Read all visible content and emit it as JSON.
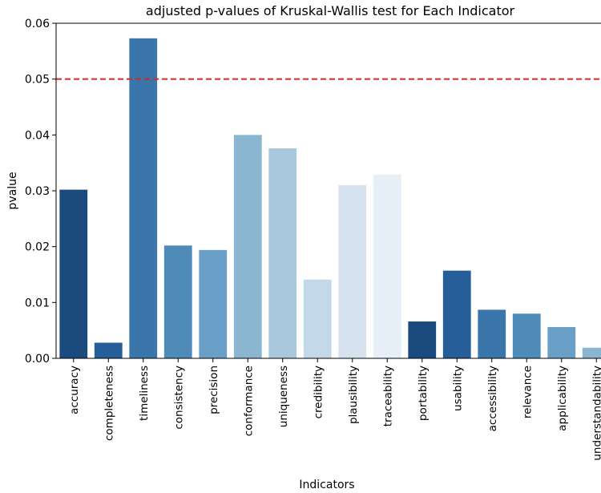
{
  "chart_data": {
    "type": "bar",
    "title": "adjusted p-values of Kruskal-Wallis test for Each Indicator",
    "xlabel": "Indicators",
    "ylabel": "pvalue",
    "ylim": [
      0,
      0.06
    ],
    "yticks": [
      "0.00",
      "0.01",
      "0.02",
      "0.03",
      "0.04",
      "0.05",
      "0.06"
    ],
    "grid": false,
    "categories": [
      "accuracy",
      "completeness",
      "timeliness",
      "consistency",
      "precision",
      "conformance",
      "uniqueness",
      "credibility",
      "plausibility",
      "traceability",
      "portability",
      "usability",
      "accessibility",
      "relevance",
      "applicability",
      "understandability"
    ],
    "values": [
      0.0302,
      0.0028,
      0.0573,
      0.0202,
      0.0194,
      0.04,
      0.0376,
      0.0141,
      0.031,
      0.0329,
      0.0066,
      0.0157,
      0.0087,
      0.008,
      0.0056,
      0.0019
    ],
    "colors": [
      "#1b4a7f",
      "#255e99",
      "#3b76aa",
      "#4f8bb9",
      "#6aa0c7",
      "#8ab6d2",
      "#a8c9dd",
      "#c3d8e8",
      "#d6e3ef",
      "#e6eff8",
      "#1b4a7f",
      "#255e99",
      "#3b76aa",
      "#4f8bb9",
      "#6aa0c7",
      "#8ab6d2"
    ],
    "reference_line": {
      "value": 0.05,
      "color": "#d62728",
      "style": "dashed"
    }
  }
}
